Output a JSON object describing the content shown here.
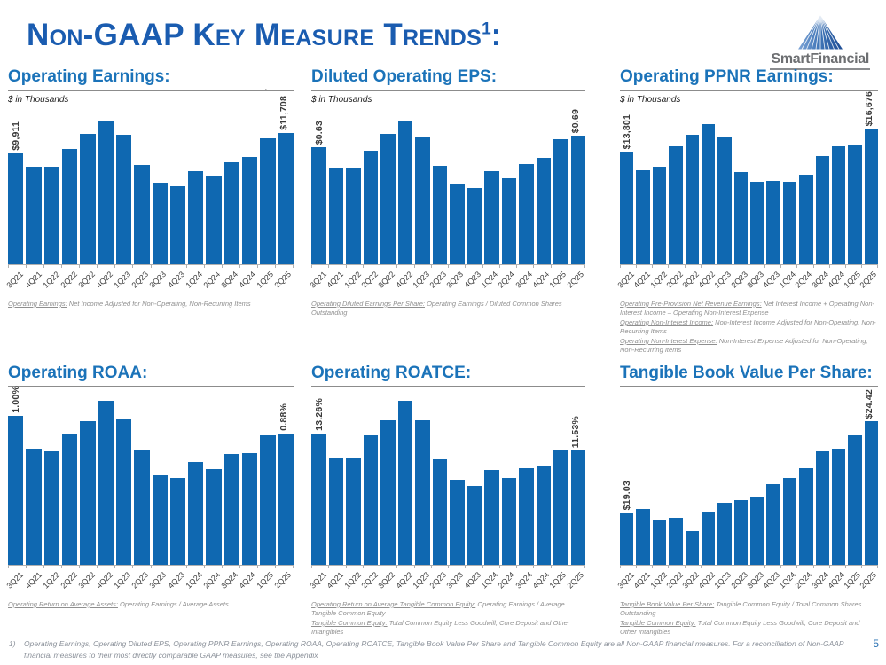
{
  "header": {
    "title": "Non-GAAP Key Measure Trends",
    "title_sup": "1",
    "title_colon": ":",
    "logo_text": "SmartFinancial",
    "stray_dot": "."
  },
  "colors": {
    "title_blue": "#1A5CB0",
    "section_blue": "#1B73B9",
    "bar_blue": "#0F68B1",
    "footnote_gray": "#8f8f8f",
    "page_number_blue": "#2E74B5",
    "logo_gray": "#6D6F72"
  },
  "footer": {
    "marker": "1)",
    "text": "Operating Earnings, Operating Diluted EPS, Operating PPNR Earnings, Operating ROAA, Operating ROATCE, Tangible Book Value Per Share and Tangible Common Equity are all Non-GAAP financial measures. For a reconciliation of Non-GAAP financial measures to their most directly comparable GAAP measures, see the Appendix",
    "page_number": "5"
  },
  "chart_data": [
    {
      "type": "bar",
      "title": "Operating Earnings:",
      "subtitle": "$ in Thousands",
      "categories": [
        "3Q21",
        "4Q21",
        "1Q22",
        "2Q22",
        "3Q22",
        "4Q22",
        "1Q23",
        "2Q23",
        "3Q23",
        "4Q23",
        "1Q24",
        "2Q24",
        "3Q24",
        "4Q24",
        "1Q25",
        "2Q25"
      ],
      "values": [
        9911,
        8700,
        8650,
        10250,
        11600,
        12790,
        11500,
        8860,
        7230,
        6900,
        8310,
        7800,
        9090,
        9550,
        11200,
        11708
      ],
      "ylim": [
        0,
        13900
      ],
      "grid": false,
      "data_labels": {
        "first": "$9,911",
        "last": "$11,708"
      },
      "footnotes": [
        {
          "lead": "Operating Earnings:",
          "rest": " Net Income Adjusted for Non-Operating, Non-Recurring Items"
        }
      ]
    },
    {
      "type": "bar",
      "title": "Diluted Operating EPS:",
      "subtitle": "$ in Thousands",
      "categories": [
        "3Q21",
        "4Q21",
        "1Q22",
        "2Q22",
        "3Q22",
        "4Q22",
        "1Q23",
        "2Q23",
        "3Q23",
        "4Q23",
        "1Q24",
        "2Q24",
        "3Q24",
        "4Q24",
        "1Q25",
        "2Q25"
      ],
      "values": [
        0.63,
        0.52,
        0.52,
        0.61,
        0.7,
        0.77,
        0.68,
        0.53,
        0.43,
        0.41,
        0.5,
        0.46,
        0.54,
        0.57,
        0.67,
        0.69
      ],
      "ylim": [
        0,
        0.84
      ],
      "grid": false,
      "data_labels": {
        "first": "$0.63",
        "last": "$0.69"
      },
      "footnotes": [
        {
          "lead": "Operating Diluted Earnings Per Share:",
          "rest": " Operating Earnings / Diluted Common Shares Outstanding"
        }
      ]
    },
    {
      "type": "bar",
      "title": "Operating PPNR Earnings:",
      "subtitle": "$ in Thousands",
      "categories": [
        "3Q21",
        "4Q21",
        "1Q22",
        "2Q22",
        "3Q22",
        "4Q22",
        "1Q23",
        "2Q23",
        "3Q23",
        "4Q23",
        "1Q24",
        "2Q24",
        "3Q24",
        "4Q24",
        "1Q25",
        "2Q25"
      ],
      "values": [
        13801,
        11580,
        12030,
        14500,
        15910,
        17200,
        15540,
        11290,
        10100,
        10290,
        10180,
        10990,
        13320,
        14500,
        14620,
        16676
      ],
      "ylim": [
        0,
        19200
      ],
      "grid": false,
      "data_labels": {
        "first": "$13,801",
        "last": "$16,676"
      },
      "footnotes": [
        {
          "lead": "Operating Pre-Provision Net Revenue Earnings:",
          "rest": " Net Interest Income + Operating Non-Interest Income – Operating Non-Interest Expense"
        },
        {
          "lead": "Operating Non-Interest Income:",
          "rest": " Non-Interest Income Adjusted for Non-Operating, Non-Recurring Items"
        },
        {
          "lead": "Operating Non-Interest Expense:",
          "rest": " Non-Interest Expense Adjusted for Non-Operating, Non-Recurring Items"
        }
      ]
    },
    {
      "type": "bar",
      "title": "Operating ROAA:",
      "subtitle": "",
      "categories": [
        "3Q21",
        "4Q21",
        "1Q22",
        "2Q22",
        "3Q22",
        "4Q22",
        "1Q23",
        "2Q23",
        "3Q23",
        "4Q23",
        "1Q24",
        "2Q24",
        "3Q24",
        "4Q24",
        "1Q25",
        "2Q25"
      ],
      "values": [
        1.0,
        0.78,
        0.76,
        0.88,
        0.96,
        1.1,
        0.98,
        0.77,
        0.6,
        0.58,
        0.69,
        0.64,
        0.74,
        0.75,
        0.87,
        0.88
      ],
      "ylim": [
        0,
        1.13
      ],
      "grid": false,
      "data_labels": {
        "first": "1.00%",
        "last": "0.88%"
      },
      "footnotes": [
        {
          "lead": "Operating Return on Average Assets:",
          "rest": " Operating Earnings / Average Assets"
        }
      ]
    },
    {
      "type": "bar",
      "title": "Operating ROATCE:",
      "subtitle": "",
      "categories": [
        "3Q21",
        "4Q21",
        "1Q22",
        "2Q22",
        "3Q22",
        "4Q22",
        "1Q23",
        "2Q23",
        "3Q23",
        "4Q23",
        "1Q24",
        "2Q24",
        "3Q24",
        "4Q24",
        "1Q25",
        "2Q25"
      ],
      "values": [
        13.26,
        10.7,
        10.81,
        13.05,
        14.53,
        16.5,
        14.53,
        10.61,
        8.55,
        7.96,
        9.55,
        8.72,
        9.78,
        9.96,
        11.58,
        11.53
      ],
      "ylim": [
        0,
        17.0
      ],
      "grid": false,
      "data_labels": {
        "first": "13.26%",
        "last": "11.53%"
      },
      "footnotes": [
        {
          "lead": "Operating Return on Average Tangible Common Equity:",
          "rest": " Operating Earnings / Average Tangible Common Equity"
        },
        {
          "lead": "Tangible Common Equity:",
          "rest": " Total Common Equity Less Goodwill, Core Deposit and Other Intangibles"
        }
      ]
    },
    {
      "type": "bar",
      "title": "Tangible Book Value Per Share:",
      "subtitle": "",
      "categories": [
        "3Q21",
        "4Q21",
        "1Q22",
        "2Q22",
        "3Q22",
        "4Q22",
        "1Q23",
        "2Q23",
        "3Q23",
        "4Q23",
        "1Q24",
        "2Q24",
        "3Q24",
        "4Q24",
        "1Q25",
        "2Q25"
      ],
      "values": [
        19.03,
        19.27,
        18.67,
        18.74,
        17.98,
        19.08,
        19.62,
        19.81,
        19.98,
        20.75,
        21.1,
        21.65,
        22.65,
        22.84,
        23.58,
        24.42
      ],
      "ylim": [
        16,
        25.9
      ],
      "grid": false,
      "data_labels": {
        "first": "$19.03",
        "last": "$24.42"
      },
      "footnotes": [
        {
          "lead": "Tangible Book Value Per Share:",
          "rest": " Tangible Common Equity / Total Common Shares Outstanding"
        },
        {
          "lead": "Tangible Common Equity:",
          "rest": " Total Common Equity Less Goodwill, Core Deposit and Other Intangibles"
        }
      ]
    }
  ]
}
